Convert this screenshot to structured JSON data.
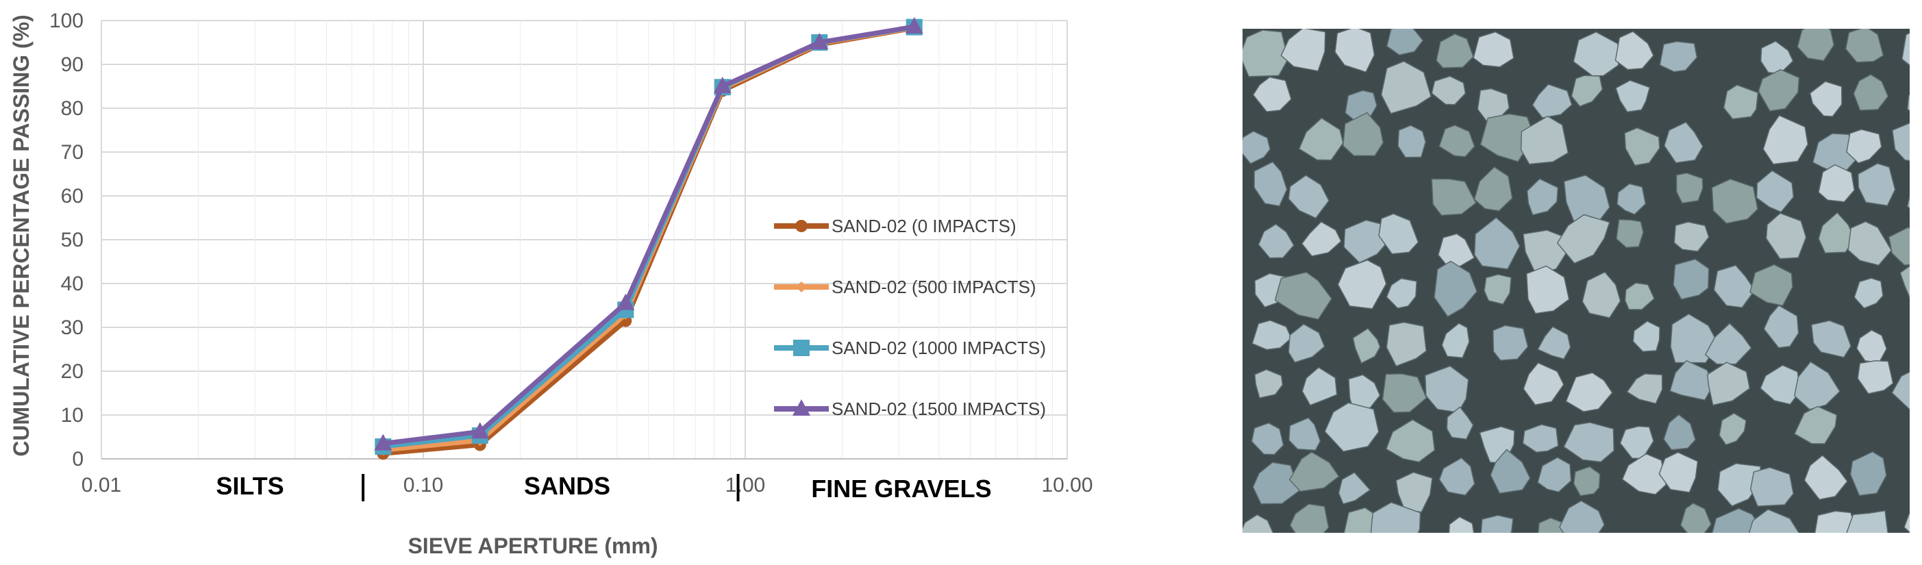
{
  "chart_data": {
    "type": "line",
    "xscale": "log",
    "xlim": [
      0.01,
      10
    ],
    "ylim": [
      0,
      100
    ],
    "grid": true,
    "xlabel": "SIEVE APERTURE (mm)",
    "ylabel": "CUMULATIVE PERCENTAGE PASSING (%)",
    "x_ticks": [
      0.01,
      0.1,
      1,
      10
    ],
    "x_tick_labels": [
      "0.01",
      "0.10",
      "1.00",
      "10.00"
    ],
    "y_ticks": [
      0,
      10,
      20,
      30,
      40,
      50,
      60,
      70,
      80,
      90,
      100
    ],
    "y_tick_labels": [
      "0",
      "10",
      "20",
      "30",
      "40",
      "50",
      "60",
      "70",
      "80",
      "90",
      "100"
    ],
    "x": [
      0.075,
      0.15,
      0.425,
      0.85,
      1.7,
      3.35
    ],
    "series": [
      {
        "name": "SAND-02 (0 IMPACTS)",
        "color": "#b05a22",
        "marker": "circle",
        "values": [
          1.2,
          3.2,
          31.5,
          84.0,
          94.5,
          98.3
        ]
      },
      {
        "name": "SAND-02 (500 IMPACTS)",
        "color": "#ee9a5b",
        "marker": "diamond",
        "values": [
          2.0,
          4.2,
          33.0,
          84.5,
          94.8,
          98.4
        ]
      },
      {
        "name": "SAND-02 (1000 IMPACTS)",
        "color": "#4ea4c1",
        "marker": "square",
        "values": [
          2.8,
          5.3,
          34.0,
          84.8,
          95.0,
          98.5
        ]
      },
      {
        "name": "SAND-02 (1500 IMPACTS)",
        "color": "#7a5ea6",
        "marker": "triangle",
        "values": [
          3.5,
          6.2,
          35.5,
          85.0,
          95.0,
          98.6
        ]
      }
    ],
    "legend_position": "center-right",
    "regions": [
      {
        "label": "SILTS",
        "separator_at": 0.065
      },
      {
        "label": "SANDS",
        "separator_at": 0.95
      },
      {
        "label": "FINE GRAVELS"
      }
    ]
  },
  "photo": {
    "subject": "sand grains micrograph"
  }
}
